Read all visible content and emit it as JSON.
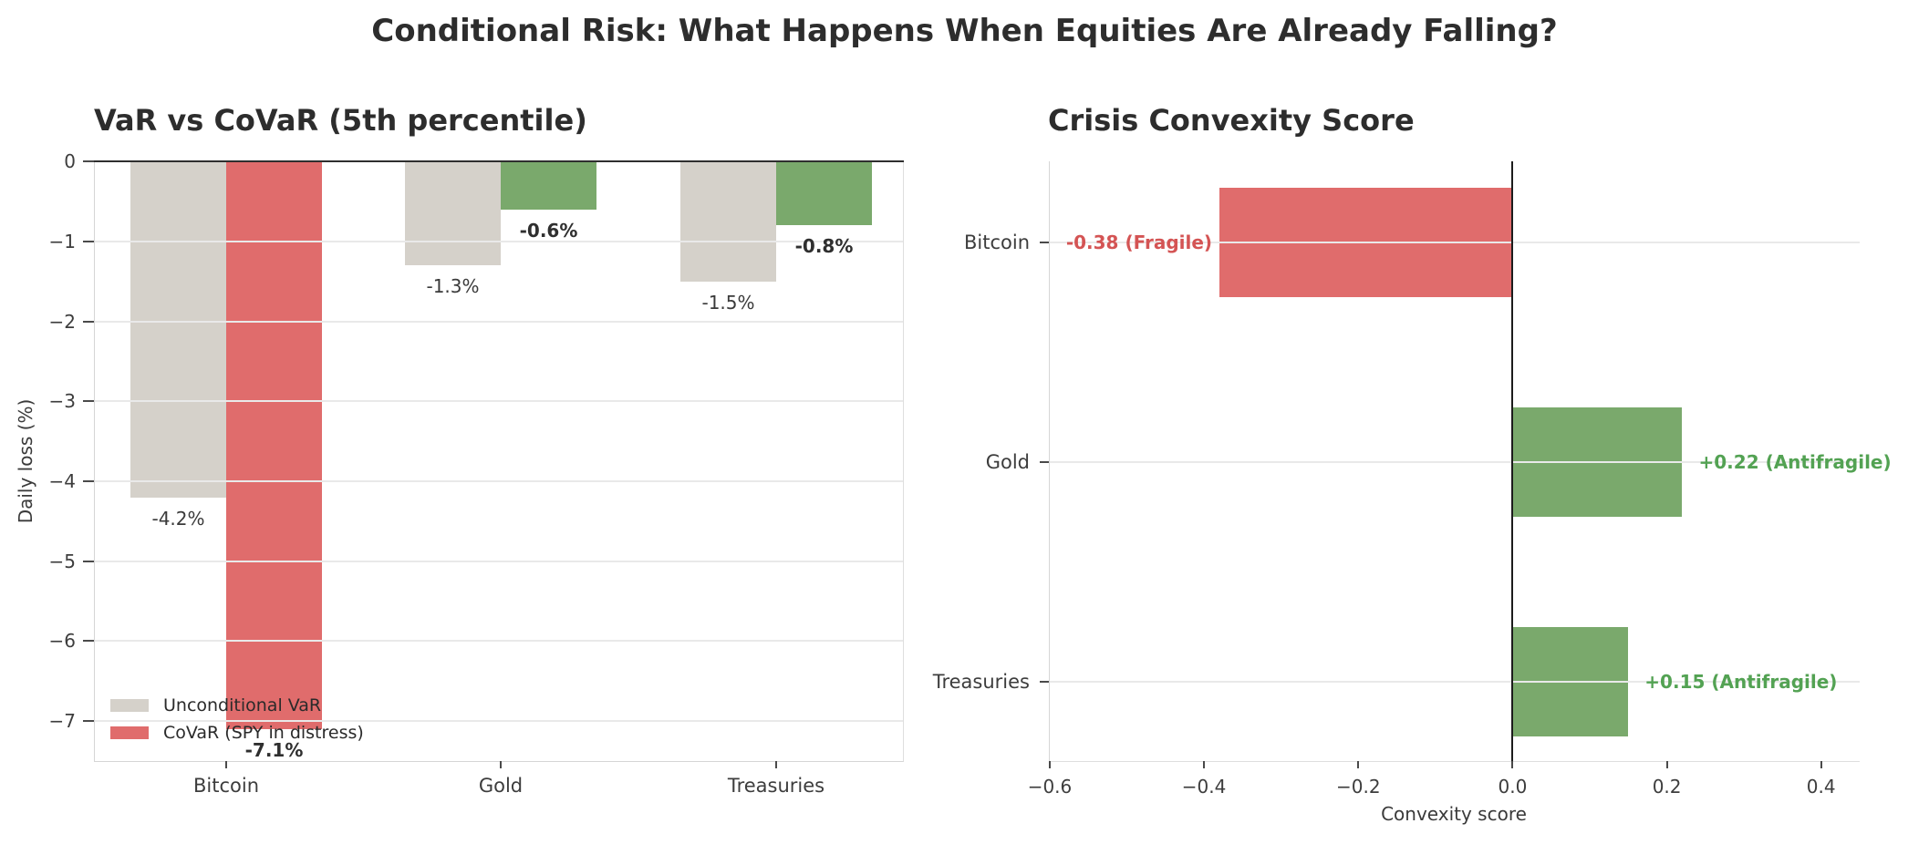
{
  "figure_title": "Conditional Risk: What Happens When Equities Are Already Falling?",
  "colors": {
    "bar_gray": "#d5d1ca",
    "bar_red": "#e06c6c",
    "bar_green": "#7aa96c",
    "label_red": "#d45454",
    "label_green": "#53a253",
    "grid": "#e9e9e9",
    "axis_dark": "#2f2f2f",
    "tick_text": "#3d3d3d"
  },
  "chart_data": [
    {
      "type": "bar",
      "title": "VaR vs CoVaR (5th percentile)",
      "ylabel": "Daily loss (%)",
      "categories": [
        "Bitcoin",
        "Gold",
        "Treasuries"
      ],
      "series": [
        {
          "name": "Unconditional VaR",
          "values": [
            -4.2,
            -1.3,
            -1.5
          ],
          "labels": [
            "-4.2%",
            "-1.3%",
            "-1.5%"
          ],
          "bar_colors": [
            "bar_gray",
            "bar_gray",
            "bar_gray"
          ],
          "bold_labels": false
        },
        {
          "name": "CoVaR (SPY in distress)",
          "values": [
            -7.1,
            -0.6,
            -0.8
          ],
          "labels": [
            "-7.1%",
            "-0.6%",
            "-0.8%"
          ],
          "bar_colors": [
            "bar_red",
            "bar_green",
            "bar_green"
          ],
          "bold_labels": true
        }
      ],
      "ylim": [
        -7.5,
        0
      ],
      "yticks": [
        0,
        -1,
        -2,
        -3,
        -4,
        -5,
        -6,
        -7
      ],
      "ytick_labels": [
        "0",
        "−1",
        "−2",
        "−3",
        "−4",
        "−5",
        "−6",
        "−7"
      ],
      "grid": "horizontal",
      "legend_position": "lower-left"
    },
    {
      "type": "barh",
      "title": "Crisis Convexity Score",
      "xlabel": "Convexity score",
      "categories": [
        "Bitcoin",
        "Gold",
        "Treasuries"
      ],
      "values": [
        -0.38,
        0.22,
        0.15
      ],
      "labels": [
        "-0.38 (Fragile)",
        "+0.22 (Antifragile)",
        "+0.15 (Antifragile)"
      ],
      "bar_colors": [
        "bar_red",
        "bar_green",
        "bar_green"
      ],
      "label_colors": [
        "label_red",
        "label_green",
        "label_green"
      ],
      "xlim": [
        -0.6,
        0.45
      ],
      "xticks": [
        -0.6,
        -0.4,
        -0.2,
        0,
        0.2,
        0.4
      ],
      "xtick_labels": [
        "−0.6",
        "−0.4",
        "−0.2",
        "0.0",
        "0.2",
        "0.4"
      ],
      "grid": "horizontal",
      "zero_line": true
    }
  ]
}
